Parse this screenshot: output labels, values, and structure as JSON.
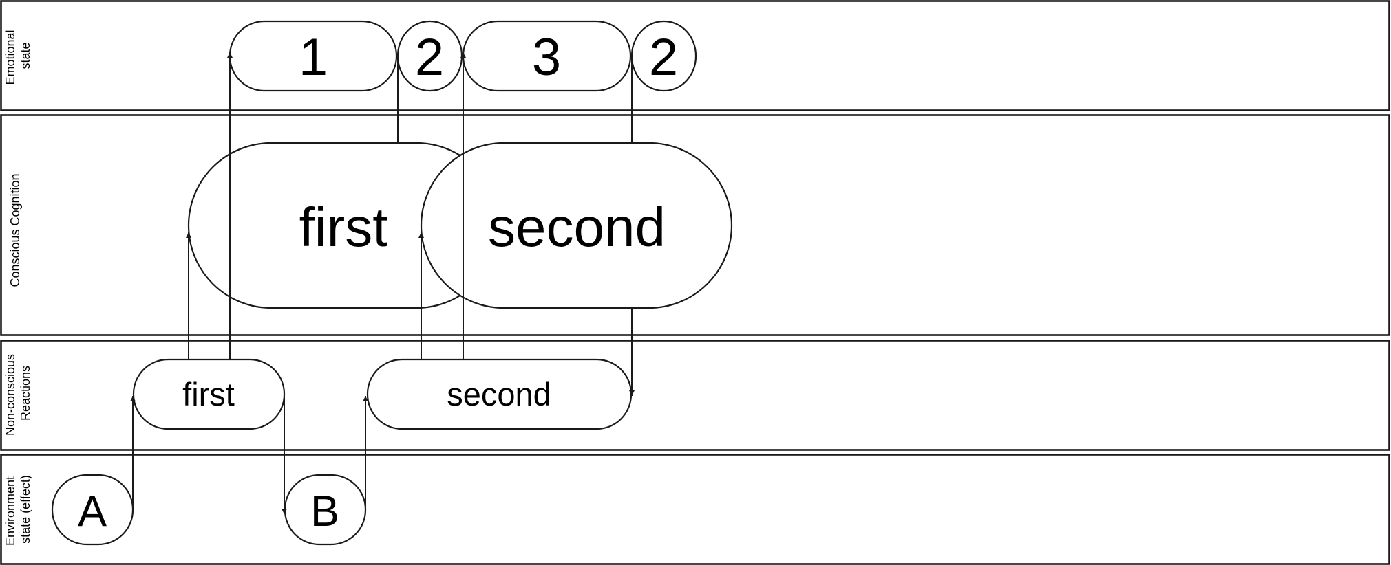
{
  "lanes": {
    "emotional": [
      "Emotional",
      "state"
    ],
    "cognition": [
      "Conscious Cognition"
    ],
    "nonconscious": [
      "Non-conscious",
      "Reactions"
    ],
    "environment": [
      "Environment",
      "state (effect)"
    ]
  },
  "nodes": {
    "emotional_1": "1",
    "emotional_2a": "2",
    "emotional_3": "3",
    "emotional_2b": "2",
    "cognition_first": "first",
    "cognition_second": "second",
    "reaction_first": "first",
    "reaction_second": "second",
    "environment_a": "A",
    "environment_b": "B"
  },
  "colors": {
    "stroke": "#1a1a1a",
    "background": "#ffffff"
  }
}
